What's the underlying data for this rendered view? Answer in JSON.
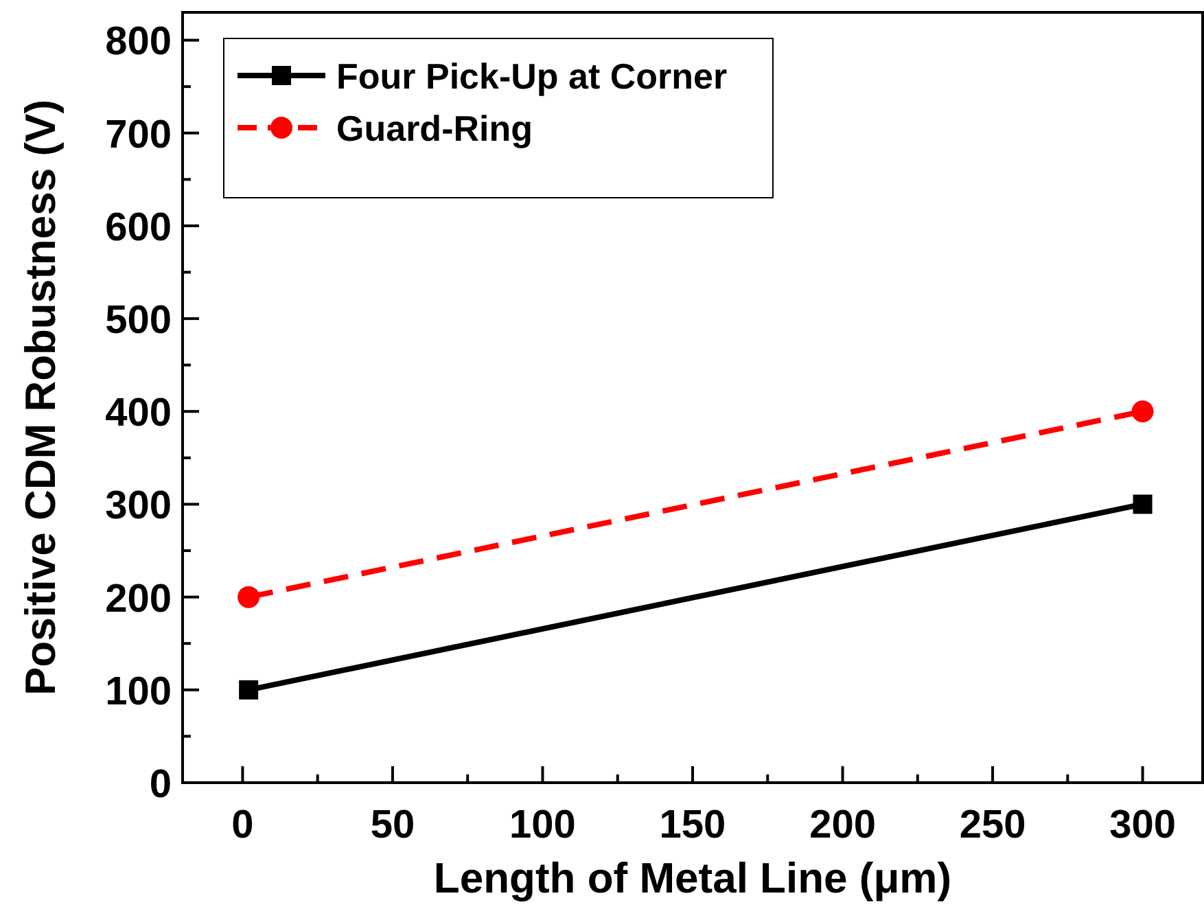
{
  "chart_data": {
    "type": "line",
    "xlabel": "Length of Metal Line (μm)",
    "ylabel": "Positive CDM Robustness (V)",
    "x": [
      2,
      300
    ],
    "series": [
      {
        "name": "Four Pick-Up at Corner",
        "color": "#000000",
        "values": [
          100,
          300
        ],
        "marker": "square",
        "line_style": "solid"
      },
      {
        "name": "Guard-Ring",
        "color": "#ff0000",
        "values": [
          200,
          400
        ],
        "marker": "circle",
        "line_style": "dashed"
      }
    ],
    "xlim": [
      -20,
      320
    ],
    "xticks": [
      0,
      50,
      100,
      150,
      200,
      250,
      300
    ],
    "ylim": [
      0,
      830
    ],
    "yticks": [
      0,
      100,
      200,
      300,
      400,
      500,
      600,
      700,
      800
    ],
    "grid": false,
    "legend": "top left"
  }
}
